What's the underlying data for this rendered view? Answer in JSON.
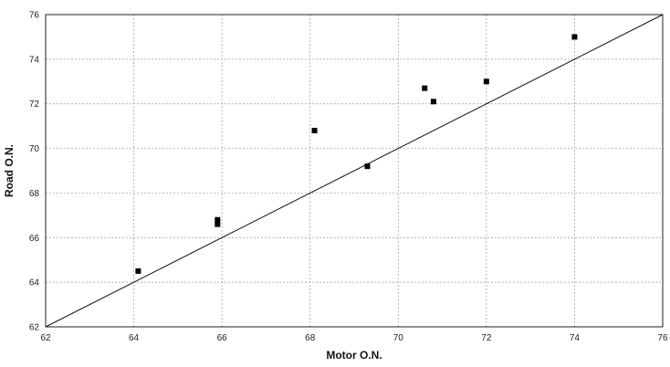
{
  "chart_data": {
    "type": "scatter",
    "xlabel": "Motor O.N.",
    "ylabel": "Road O.N.",
    "xlim": [
      62,
      76
    ],
    "ylim": [
      62,
      76
    ],
    "xticks": [
      62,
      64,
      66,
      68,
      70,
      72,
      74,
      76
    ],
    "yticks": [
      62,
      64,
      66,
      68,
      70,
      72,
      74,
      76
    ],
    "grid": true,
    "legend": "none",
    "reference_line": {
      "from": [
        62,
        62
      ],
      "to": [
        76,
        76
      ]
    },
    "points": [
      {
        "x": 64.1,
        "y": 64.5
      },
      {
        "x": 65.9,
        "y": 66.6
      },
      {
        "x": 65.9,
        "y": 66.8
      },
      {
        "x": 68.1,
        "y": 70.8
      },
      {
        "x": 69.3,
        "y": 69.2
      },
      {
        "x": 70.6,
        "y": 72.7
      },
      {
        "x": 70.8,
        "y": 72.1
      },
      {
        "x": 72.0,
        "y": 73.0
      },
      {
        "x": 74.0,
        "y": 75.0
      }
    ]
  }
}
